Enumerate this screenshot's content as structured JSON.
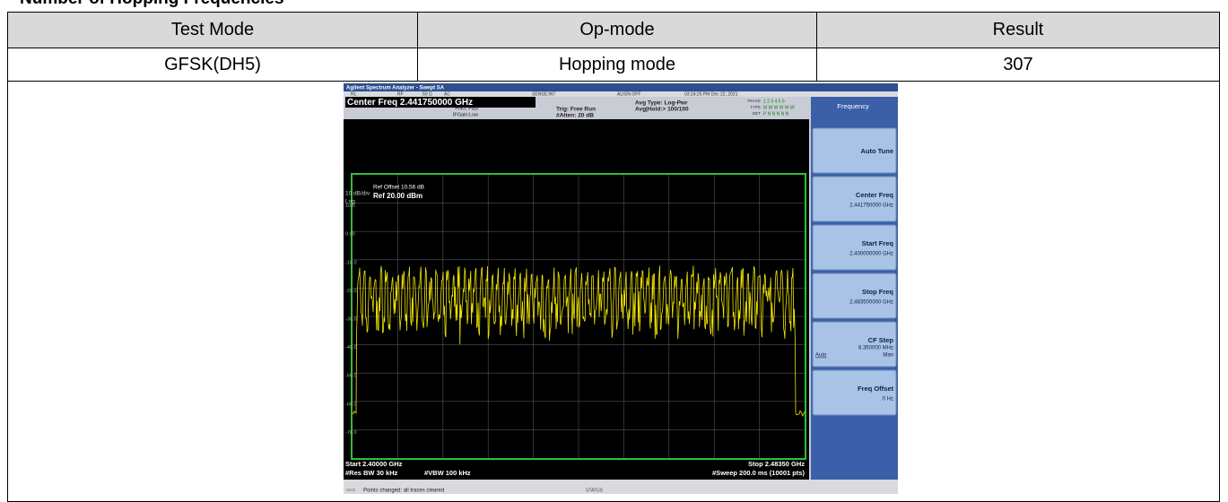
{
  "heading": "Number of Hopping Frequencies",
  "table": {
    "headers": [
      "Test Mode",
      "Op-mode",
      "Result"
    ],
    "rows": [
      [
        "GFSK(DH5)",
        "Hopping mode",
        "307"
      ]
    ]
  },
  "analyzer": {
    "window_title": "Agilent Spectrum Analyzer - Swept SA",
    "status": [
      "RL",
      "RF",
      "50 Ω",
      "AC",
      "SENSE:INT",
      "ALIGN OFF",
      "03:24:25 PM Dec 22, 2021"
    ],
    "center_freq": "Center Freq 2.441750000 GHz",
    "pno": "PNO: Fast",
    "ifgain": "IFGain:Low",
    "trig": "Trig: Free Run",
    "atten": "#Atten: 20 dB",
    "avg_type": "Avg Type: Log-Pwr",
    "avg_hold": "Avg|Hold:> 100/100",
    "trace_labels": [
      "TRACE",
      "TYPE",
      "DET"
    ],
    "trace_values": [
      "1 2 3 4 5 6",
      "M W W W W W",
      "P N N N N N"
    ],
    "ref_offset": "Ref Offset 10.56 dB",
    "ref_level": "Ref 20.00 dBm",
    "scale": "10 dB/div",
    "scale_type": "Log",
    "y_labels": [
      "10.0",
      "0.00",
      "-10.0",
      "-20.0",
      "-30.0",
      "-40.0",
      "-50.0",
      "-60.0",
      "-70.0"
    ],
    "start": "Start 2.40000 GHz",
    "res_bw": "#Res BW 30 kHz",
    "vbw": "#VBW 100 kHz",
    "stop": "Stop 2.48350 GHz",
    "sweep": "#Sweep  200.0 ms (10001 pts)",
    "msg_tag": "MSG",
    "message": "Points changed: all traces cleared",
    "status_label": "STATUS",
    "menu": {
      "title": "Frequency",
      "items": [
        {
          "label": "Auto Tune"
        },
        {
          "label": "Center Freq",
          "value": "2.441750000 GHz"
        },
        {
          "label": "Start Freq",
          "value": "2.400000000 GHz"
        },
        {
          "label": "Stop Freq",
          "value": "2.483500000 GHz"
        },
        {
          "label": "CF Step",
          "value": "8.350000 MHz",
          "options": [
            "Auto",
            "Man"
          ]
        },
        {
          "label": "Freq Offset",
          "value": "0 Hz"
        }
      ]
    }
  }
}
